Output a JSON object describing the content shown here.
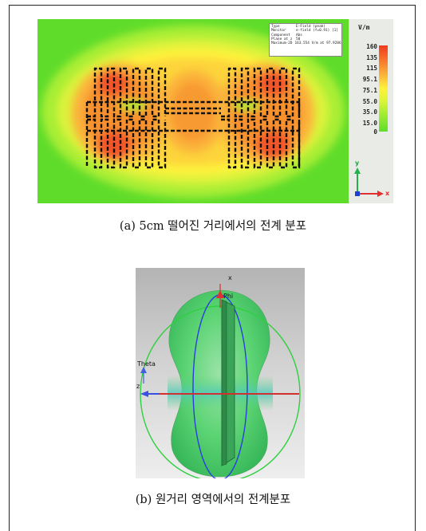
{
  "figure_a": {
    "unit": "V/m",
    "colorbar_ticks": [
      "160",
      "135",
      "115",
      "95.1",
      "75.1",
      "55.0",
      "35.0",
      "15.0",
      "0"
    ],
    "info": [
      {
        "key": "Type",
        "value": "E-Field (peak)"
      },
      {
        "key": "Monitor",
        "value": "e-field (f=0.91) [1]"
      },
      {
        "key": "Component",
        "value": "Abs"
      },
      {
        "key": "Plane at z",
        "value": "50"
      },
      {
        "key": "Maximum-2D",
        "value": "163.554 V/m at 97.9286"
      }
    ],
    "axis_y": "y",
    "axis_x": "x",
    "caption": "(a) 5cm 떨어진 거리에서의 전계 분포",
    "colors": {
      "field_max": "#f03a20",
      "field_mid": "#fef23a",
      "field_min": "#5fdc2a",
      "antenna": "#111111"
    }
  },
  "figure_b": {
    "axis_x": "x",
    "axis_z": "z",
    "label_phi": "Phi",
    "label_theta": "Theta",
    "caption": "(b) 원거리 영역에서의 전계분포",
    "colors": {
      "pattern": "#4ccf6e",
      "phi_arrow": "#e03030",
      "theta_arrow": "#4060e0",
      "ring_blue": "#2a3ee0",
      "ring_green": "#2fd040"
    }
  }
}
